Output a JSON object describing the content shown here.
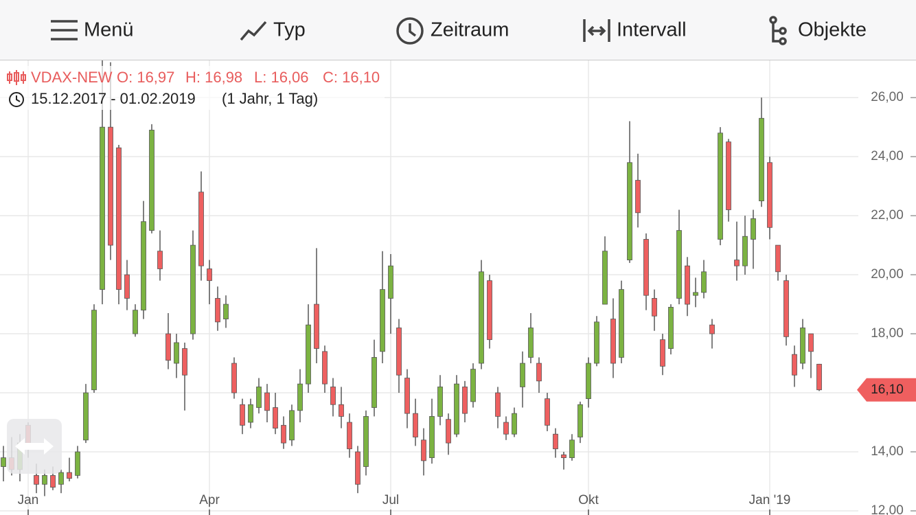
{
  "toolbar": [
    "Menü",
    "Typ",
    "Zeitraum",
    "Intervall",
    "Objekte"
  ],
  "chart_data": {
    "type": "candlestick",
    "legend": {
      "name": "VDAX-NEW",
      "open": "O: 16,97",
      "high": "H: 16,98",
      "low": "L: 16,06",
      "close": "C: 16,10",
      "range": "15.12.2017 - 01.02.2019",
      "period": "(1 Jahr, 1 Tag)"
    },
    "up_color": "#7cb342",
    "down_color": "#ee6060",
    "grid": true,
    "ylim": [
      11.86,
      27.26
    ],
    "yticks": [
      {
        "value": 12,
        "label": "12,00"
      },
      {
        "value": 14,
        "label": "14,00"
      },
      {
        "value": 16,
        "label": "16,00"
      },
      {
        "value": 18,
        "label": "18,00"
      },
      {
        "value": 20,
        "label": "20,00"
      },
      {
        "value": 22,
        "label": "22,00"
      },
      {
        "value": 24,
        "label": "24,00"
      },
      {
        "value": 26,
        "label": "26,00"
      }
    ],
    "last_price": {
      "value": 16.1,
      "label": "16,10"
    },
    "categories": [
      null,
      null,
      null,
      "Jan",
      null,
      null,
      null,
      null,
      null,
      null,
      null,
      null,
      null,
      null,
      null,
      null,
      null,
      null,
      null,
      null,
      null,
      null,
      null,
      null,
      null,
      "Apr",
      null,
      null,
      null,
      null,
      null,
      null,
      null,
      null,
      null,
      null,
      null,
      null,
      null,
      null,
      null,
      null,
      null,
      null,
      null,
      null,
      null,
      "Jul",
      null,
      null,
      null,
      null,
      null,
      null,
      null,
      null,
      null,
      null,
      null,
      null,
      null,
      null,
      null,
      null,
      null,
      null,
      null,
      null,
      null,
      null,
      null,
      "Okt",
      null,
      null,
      null,
      null,
      null,
      null,
      null,
      null,
      null,
      null,
      null,
      null,
      null,
      null,
      null,
      null,
      null,
      null,
      null,
      null,
      null,
      "Jan '19",
      null,
      null,
      null,
      null,
      null,
      null,
      null
    ],
    "values": [
      [
        13.5,
        14.2,
        13.0,
        13.8
      ],
      [
        13.8,
        14.5,
        13.2,
        13.4
      ],
      [
        13.4,
        14.6,
        13.0,
        14.3
      ],
      [
        14.9,
        15.0,
        13.8,
        14.1
      ],
      [
        13.2,
        13.6,
        12.6,
        12.9
      ],
      [
        12.9,
        13.4,
        12.5,
        13.2
      ],
      [
        13.2,
        13.5,
        12.7,
        12.8
      ],
      [
        12.9,
        13.4,
        12.6,
        13.3
      ],
      [
        13.3,
        13.8,
        13.0,
        13.1
      ],
      [
        13.2,
        14.2,
        13.1,
        14.0
      ],
      [
        14.4,
        16.3,
        14.3,
        16.0
      ],
      [
        16.1,
        19.0,
        16.0,
        18.8
      ],
      [
        19.5,
        27.3,
        19.0,
        25.0
      ],
      [
        25.0,
        27.2,
        20.5,
        21.0
      ],
      [
        24.3,
        24.4,
        19.0,
        19.5
      ],
      [
        20.0,
        20.5,
        18.8,
        19.2
      ],
      [
        18.0,
        19.0,
        17.9,
        18.8
      ],
      [
        18.8,
        22.5,
        18.5,
        21.8
      ],
      [
        21.5,
        25.1,
        21.4,
        24.9
      ],
      [
        20.8,
        21.5,
        19.8,
        20.2
      ],
      [
        18.0,
        18.7,
        16.8,
        17.1
      ],
      [
        17.0,
        18.0,
        16.5,
        17.7
      ],
      [
        17.5,
        17.7,
        15.4,
        16.6
      ],
      [
        18.0,
        21.5,
        17.8,
        21.0
      ],
      [
        22.8,
        23.5,
        19.8,
        20.3
      ],
      [
        20.2,
        20.5,
        19.0,
        19.8
      ],
      [
        19.2,
        19.6,
        18.1,
        18.4
      ],
      [
        18.5,
        19.3,
        18.2,
        19.0
      ],
      [
        17.0,
        17.2,
        15.8,
        16.0
      ],
      [
        15.6,
        15.8,
        14.6,
        14.9
      ],
      [
        15.0,
        15.8,
        14.8,
        15.6
      ],
      [
        15.5,
        16.5,
        15.3,
        16.2
      ],
      [
        16.0,
        16.3,
        15.0,
        15.4
      ],
      [
        15.5,
        16.0,
        14.6,
        14.8
      ],
      [
        14.9,
        15.2,
        14.1,
        14.3
      ],
      [
        14.4,
        15.6,
        14.2,
        15.4
      ],
      [
        15.4,
        16.8,
        15.0,
        16.3
      ],
      [
        16.3,
        19.0,
        16.0,
        18.3
      ],
      [
        19.0,
        20.9,
        17.0,
        17.5
      ],
      [
        17.4,
        17.6,
        16.0,
        16.3
      ],
      [
        16.2,
        16.5,
        15.2,
        15.6
      ],
      [
        15.6,
        16.2,
        14.8,
        15.2
      ],
      [
        15.0,
        15.3,
        13.8,
        14.1
      ],
      [
        14.0,
        14.2,
        12.6,
        12.9
      ],
      [
        13.5,
        15.4,
        13.2,
        15.2
      ],
      [
        15.5,
        17.8,
        15.2,
        17.2
      ],
      [
        17.4,
        20.8,
        17.0,
        19.5
      ],
      [
        19.2,
        20.7,
        18.0,
        20.3
      ],
      [
        18.2,
        18.5,
        16.0,
        16.6
      ],
      [
        16.5,
        16.8,
        14.8,
        15.3
      ],
      [
        15.3,
        15.8,
        14.2,
        14.5
      ],
      [
        14.4,
        14.8,
        13.2,
        13.7
      ],
      [
        13.8,
        15.8,
        13.6,
        15.2
      ],
      [
        15.2,
        16.6,
        14.9,
        16.2
      ],
      [
        15.1,
        15.3,
        13.9,
        14.3
      ],
      [
        14.6,
        16.6,
        14.5,
        16.3
      ],
      [
        16.2,
        16.4,
        15.0,
        15.3
      ],
      [
        15.7,
        17.0,
        15.5,
        16.8
      ],
      [
        17.0,
        20.5,
        16.8,
        20.1
      ],
      [
        19.8,
        20.0,
        17.5,
        17.8
      ],
      [
        16.0,
        16.2,
        14.8,
        15.2
      ],
      [
        15.0,
        15.2,
        14.4,
        14.6
      ],
      [
        14.6,
        15.5,
        14.5,
        15.3
      ],
      [
        16.2,
        17.4,
        15.5,
        17.0
      ],
      [
        17.2,
        18.7,
        17.0,
        18.2
      ],
      [
        17.0,
        17.2,
        16.0,
        16.4
      ],
      [
        15.8,
        16.0,
        14.7,
        14.9
      ],
      [
        14.6,
        14.8,
        13.8,
        14.1
      ],
      [
        13.9,
        14.0,
        13.4,
        13.8
      ],
      [
        13.8,
        14.6,
        13.7,
        14.4
      ],
      [
        14.5,
        15.7,
        14.3,
        15.6
      ],
      [
        15.8,
        17.2,
        15.5,
        17.0
      ],
      [
        17.0,
        18.6,
        16.9,
        18.4
      ],
      [
        19.0,
        21.3,
        19.0,
        20.8
      ],
      [
        18.5,
        19.2,
        16.5,
        17.0
      ],
      [
        17.2,
        19.8,
        17.0,
        19.5
      ],
      [
        20.5,
        25.2,
        20.4,
        23.8
      ],
      [
        23.2,
        24.1,
        21.6,
        22.1
      ],
      [
        21.2,
        21.4,
        18.8,
        19.3
      ],
      [
        19.2,
        19.5,
        18.1,
        18.6
      ],
      [
        17.8,
        18.0,
        16.6,
        16.9
      ],
      [
        17.5,
        19.0,
        17.3,
        18.9
      ],
      [
        19.2,
        22.2,
        19.0,
        21.5
      ],
      [
        20.3,
        20.6,
        18.6,
        19.0
      ],
      [
        19.3,
        19.9,
        18.9,
        19.4
      ],
      [
        19.4,
        20.5,
        19.2,
        20.1
      ],
      [
        18.3,
        18.5,
        17.5,
        18.0
      ],
      [
        21.2,
        25.0,
        21.0,
        24.8
      ],
      [
        24.5,
        24.6,
        21.8,
        22.2
      ],
      [
        20.5,
        21.8,
        19.8,
        20.3
      ],
      [
        20.3,
        22.0,
        20.0,
        21.3
      ],
      [
        21.2,
        22.2,
        20.2,
        21.9
      ],
      [
        22.5,
        26.0,
        22.3,
        25.3
      ],
      [
        23.8,
        24.0,
        21.2,
        21.6
      ],
      [
        21.0,
        21.0,
        19.8,
        20.1
      ],
      [
        19.8,
        20.0,
        17.6,
        17.9
      ],
      [
        17.3,
        17.6,
        16.2,
        16.6
      ],
      [
        17.0,
        18.5,
        16.8,
        18.2
      ],
      [
        18.0,
        18.0,
        16.5,
        17.4
      ],
      [
        16.97,
        16.98,
        16.06,
        16.1
      ]
    ]
  }
}
